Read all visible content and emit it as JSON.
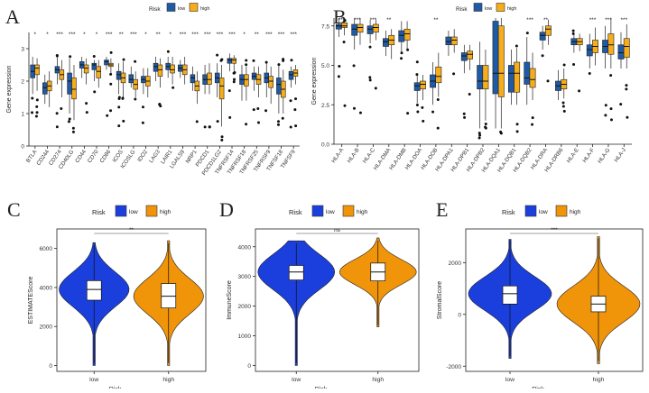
{
  "colors": {
    "low": "#1f5aa6",
    "high": "#f5ad1c",
    "violin_low": "#1b3fdc",
    "violin_high": "#f0940a"
  },
  "legend": {
    "title": "Risk",
    "low": "low",
    "high": "high"
  },
  "panels": {
    "A": "A",
    "B": "B",
    "C": "C",
    "D": "D",
    "E": "E"
  },
  "chart_data": [
    {
      "type": "boxplot",
      "panel": "A",
      "ylabel": "Gene expression",
      "ylim": [
        0,
        3.5
      ],
      "yticks": [
        0,
        1,
        2,
        3
      ],
      "categories": [
        "BTLA",
        "CD244",
        "CD274",
        "CD40LG",
        "CD44",
        "CD70",
        "CD86",
        "ICOS",
        "ICOSLG",
        "IDO2",
        "LAG3",
        "LAIR1",
        "LGALS9",
        "NRP1",
        "PDCD1",
        "PDCD1LG2",
        "TNFRSF14",
        "TNFRSF18",
        "TNFRSF25",
        "TNFRSF9",
        "TNFSF18",
        "TNFSF9"
      ],
      "significance": [
        "*",
        "*",
        "***",
        "***",
        "*",
        "*",
        "***",
        "**",
        "***",
        "*",
        "**",
        "*",
        "***",
        "***",
        "***",
        "***",
        "***",
        "*",
        "**",
        "***",
        "***",
        "***"
      ],
      "series": [
        {
          "name": "low",
          "boxes": [
            [
              1.6,
              2.1,
              2.3,
              2.5,
              2.75
            ],
            [
              1.3,
              1.6,
              1.8,
              1.95,
              2.2
            ],
            [
              1.9,
              2.25,
              2.35,
              2.45,
              2.75
            ],
            [
              1.0,
              1.6,
              2.0,
              2.25,
              2.7
            ],
            [
              2.1,
              2.4,
              2.5,
              2.6,
              2.75
            ],
            [
              2.0,
              2.35,
              2.5,
              2.55,
              2.65
            ],
            [
              2.35,
              2.5,
              2.6,
              2.65,
              2.75
            ],
            [
              1.6,
              2.05,
              2.2,
              2.3,
              2.55
            ],
            [
              1.8,
              1.95,
              2.05,
              2.2,
              2.45
            ],
            [
              1.6,
              1.95,
              2.05,
              2.15,
              2.4
            ],
            [
              2.0,
              2.3,
              2.45,
              2.55,
              2.75
            ],
            [
              2.1,
              2.35,
              2.45,
              2.55,
              2.75
            ],
            [
              2.1,
              2.3,
              2.4,
              2.5,
              2.65
            ],
            [
              1.7,
              1.95,
              2.1,
              2.2,
              2.45
            ],
            [
              1.6,
              1.9,
              2.05,
              2.2,
              2.5
            ],
            [
              1.5,
              1.95,
              2.1,
              2.25,
              2.55
            ],
            [
              2.3,
              2.55,
              2.65,
              2.7,
              2.85
            ],
            [
              1.4,
              1.9,
              2.05,
              2.2,
              2.5
            ],
            [
              1.7,
              2.05,
              2.15,
              2.25,
              2.45
            ],
            [
              1.5,
              1.95,
              2.1,
              2.25,
              2.55
            ],
            [
              1.0,
              1.6,
              1.9,
              2.1,
              2.5
            ],
            [
              1.8,
              2.05,
              2.2,
              2.3,
              2.45
            ]
          ]
        },
        {
          "name": "high",
          "boxes": [
            [
              1.7,
              2.2,
              2.4,
              2.5,
              2.7
            ],
            [
              1.2,
              1.7,
              1.85,
              2.0,
              2.3
            ],
            [
              1.5,
              2.05,
              2.2,
              2.35,
              2.65
            ],
            [
              0.8,
              1.45,
              1.75,
              2.1,
              2.5
            ],
            [
              1.9,
              2.25,
              2.4,
              2.5,
              2.7
            ],
            [
              1.8,
              2.1,
              2.3,
              2.45,
              2.65
            ],
            [
              2.25,
              2.45,
              2.5,
              2.55,
              2.7
            ],
            [
              1.5,
              1.95,
              2.1,
              2.25,
              2.6
            ],
            [
              1.5,
              1.75,
              1.9,
              2.05,
              2.3
            ],
            [
              1.5,
              1.85,
              2.0,
              2.15,
              2.4
            ],
            [
              1.8,
              2.15,
              2.35,
              2.5,
              2.7
            ],
            [
              1.9,
              2.25,
              2.35,
              2.5,
              2.75
            ],
            [
              1.9,
              2.2,
              2.35,
              2.5,
              2.75
            ],
            [
              1.3,
              1.7,
              1.85,
              2.0,
              2.3
            ],
            [
              1.6,
              1.9,
              2.05,
              2.25,
              2.55
            ],
            [
              0.6,
              1.45,
              1.85,
              2.1,
              2.5
            ],
            [
              2.3,
              2.55,
              2.65,
              2.7,
              2.8
            ],
            [
              1.4,
              1.85,
              2.05,
              2.2,
              2.45
            ],
            [
              1.5,
              1.9,
              2.05,
              2.2,
              2.45
            ],
            [
              1.3,
              1.8,
              2.0,
              2.15,
              2.45
            ],
            [
              1.0,
              1.5,
              1.75,
              2.0,
              2.35
            ],
            [
              1.9,
              2.15,
              2.25,
              2.35,
              2.5
            ]
          ]
        }
      ]
    },
    {
      "type": "boxplot",
      "panel": "B",
      "ylabel": "Gene expression",
      "ylim": [
        0,
        8
      ],
      "yticks": [
        0.0,
        2.5,
        5.0,
        7.5
      ],
      "categories": [
        "HLA-A",
        "HLA-B",
        "HLA-C",
        "HLA-DMA",
        "HLA-DMB",
        "HLA-DOA",
        "HLA-DOB",
        "HLA-DPA1",
        "HLA-DPB1",
        "HLA-DPB2",
        "HLA-DQA1",
        "HLA-DQB1",
        "HLA-DQB2",
        "HLA-DRA",
        "HLA-DRB6",
        "HLA-E",
        "HLA-F",
        "HLA-G",
        "HLA-J"
      ],
      "significance": [
        "***",
        "***",
        "***",
        "**",
        "",
        "",
        "**",
        "",
        "",
        "",
        "",
        "",
        "***",
        "**",
        "",
        "",
        "***",
        "***",
        "***"
      ],
      "series": [
        {
          "name": "low",
          "boxes": [
            [
              6.8,
              7.3,
              7.5,
              7.6,
              8.0
            ],
            [
              6.0,
              6.9,
              7.3,
              7.6,
              8.0
            ],
            [
              6.4,
              7.0,
              7.3,
              7.5,
              7.9
            ],
            [
              5.6,
              6.2,
              6.5,
              6.7,
              7.2
            ],
            [
              5.8,
              6.5,
              6.9,
              7.2,
              7.8
            ],
            [
              2.6,
              3.4,
              3.7,
              3.9,
              4.4
            ],
            [
              2.5,
              3.6,
              4.0,
              4.4,
              5.2
            ],
            [
              5.6,
              6.3,
              6.5,
              6.8,
              7.2
            ],
            [
              4.5,
              5.3,
              5.6,
              5.8,
              6.3
            ],
            [
              1.0,
              3.5,
              4.0,
              5.0,
              6.5
            ],
            [
              1.0,
              3.2,
              4.5,
              7.8,
              8.0
            ],
            [
              2.5,
              3.3,
              4.5,
              5.0,
              6.0
            ],
            [
              2.5,
              3.8,
              4.2,
              5.2,
              6.8
            ],
            [
              6.0,
              6.6,
              6.9,
              7.1,
              7.5
            ],
            [
              2.8,
              3.4,
              3.7,
              4.0,
              4.7
            ],
            [
              5.8,
              6.3,
              6.5,
              6.7,
              7.0
            ],
            [
              4.8,
              5.6,
              6.0,
              6.3,
              7.0
            ],
            [
              4.8,
              5.8,
              6.2,
              6.6,
              7.5
            ],
            [
              4.8,
              5.4,
              5.8,
              6.3,
              7.1
            ]
          ]
        },
        {
          "name": "high",
          "boxes": [
            [
              6.9,
              7.4,
              7.5,
              7.7,
              8.0
            ],
            [
              6.3,
              7.1,
              7.4,
              7.6,
              8.0
            ],
            [
              6.6,
              7.1,
              7.4,
              7.6,
              7.9
            ],
            [
              5.4,
              6.3,
              6.6,
              6.9,
              7.3
            ],
            [
              6.0,
              6.6,
              7.0,
              7.3,
              7.8
            ],
            [
              2.8,
              3.5,
              3.8,
              4.0,
              4.4
            ],
            [
              3.0,
              3.9,
              4.3,
              4.9,
              5.8
            ],
            [
              5.8,
              6.3,
              6.6,
              6.8,
              7.3
            ],
            [
              4.7,
              5.4,
              5.7,
              5.9,
              6.3
            ],
            [
              1.5,
              3.5,
              4.0,
              5.0,
              6.0
            ],
            [
              1.0,
              3.0,
              4.5,
              7.5,
              8.0
            ],
            [
              2.5,
              3.3,
              4.5,
              5.2,
              6.1
            ],
            [
              2.8,
              3.6,
              4.1,
              4.8,
              5.8
            ],
            [
              6.3,
              6.9,
              7.3,
              7.5,
              7.9
            ],
            [
              2.9,
              3.5,
              3.8,
              4.1,
              4.8
            ],
            [
              5.9,
              6.3,
              6.5,
              6.7,
              7.0
            ],
            [
              5.0,
              5.8,
              6.2,
              6.6,
              7.4
            ],
            [
              4.8,
              5.7,
              6.3,
              7.0,
              8.0
            ],
            [
              4.8,
              5.5,
              6.2,
              6.7,
              7.6
            ]
          ]
        }
      ]
    },
    {
      "type": "violin",
      "panel": "C",
      "ylabel": "ESTIMATEScore",
      "xlabel": "Risk",
      "ylim": [
        -300,
        7000
      ],
      "yticks": [
        0,
        2000,
        4000,
        6000
      ],
      "categories": [
        "low",
        "high"
      ],
      "significance": "**",
      "boxes": [
        [
          1200,
          3350,
          3900,
          4350,
          5500
        ],
        [
          1000,
          2950,
          3550,
          4200,
          5500
        ]
      ],
      "range": [
        [
          0,
          6300
        ],
        [
          0,
          6400
        ]
      ]
    },
    {
      "type": "violin",
      "panel": "D",
      "ylabel": "ImmuneScore",
      "xlabel": "Risk",
      "ylim": [
        -200,
        4600
      ],
      "yticks": [
        0,
        1000,
        2000,
        3000,
        4000
      ],
      "categories": [
        "low",
        "high"
      ],
      "significance": "ns",
      "boxes": [
        [
          2100,
          2880,
          3150,
          3370,
          4100
        ],
        [
          2200,
          2850,
          3150,
          3450,
          4200
        ]
      ],
      "range": [
        [
          0,
          4200
        ],
        [
          1300,
          4300
        ]
      ]
    },
    {
      "type": "violin",
      "panel": "E",
      "ylabel": "StromalScore",
      "xlabel": "Risk",
      "ylim": [
        -2200,
        3300
      ],
      "yticks": [
        -2000,
        0,
        2000
      ],
      "categories": [
        "low",
        "high"
      ],
      "significance": "***",
      "boxes": [
        [
          -700,
          400,
          800,
          1100,
          2300
        ],
        [
          -1300,
          100,
          400,
          700,
          2200
        ]
      ],
      "range": [
        [
          -1700,
          2900
        ],
        [
          -1900,
          3000
        ]
      ]
    }
  ]
}
